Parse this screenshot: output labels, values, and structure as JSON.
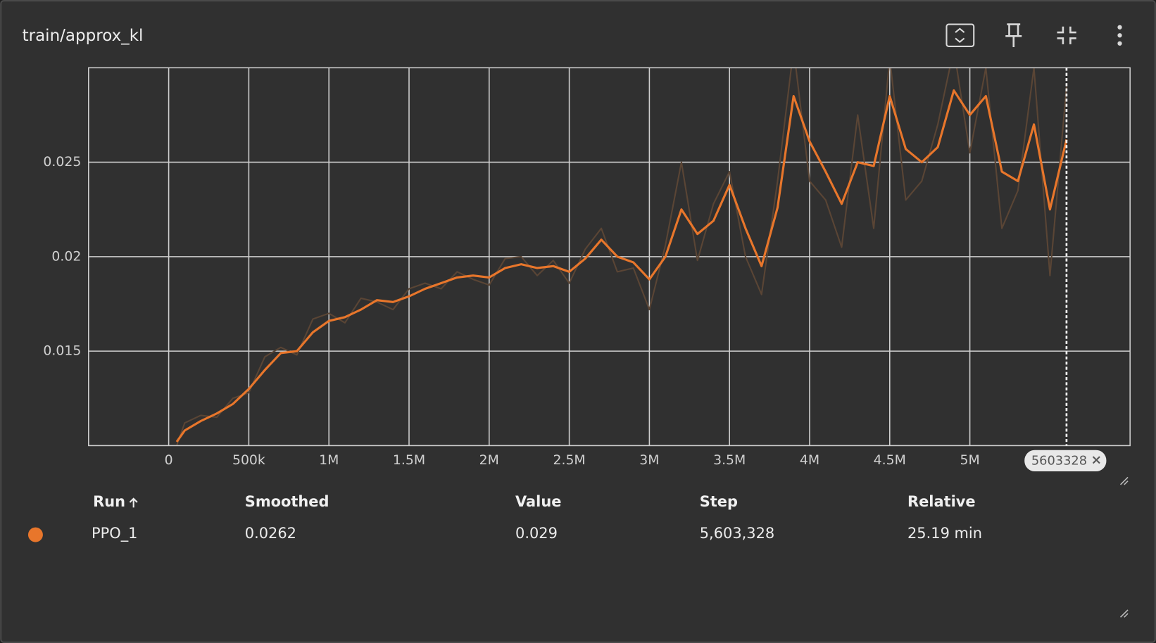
{
  "chart_data": {
    "type": "line",
    "title": "train/approx_kl",
    "x": [
      50000,
      100000,
      200000,
      300000,
      400000,
      500000,
      600000,
      700000,
      800000,
      900000,
      1000000,
      1100000,
      1200000,
      1300000,
      1400000,
      1500000,
      1600000,
      1700000,
      1800000,
      1900000,
      2000000,
      2100000,
      2200000,
      2300000,
      2400000,
      2500000,
      2600000,
      2700000,
      2800000,
      2900000,
      3000000,
      3100000,
      3200000,
      3300000,
      3400000,
      3500000,
      3600000,
      3700000,
      3800000,
      3900000,
      4000000,
      4100000,
      4200000,
      4300000,
      4400000,
      4500000,
      4600000,
      4700000,
      4800000,
      4900000,
      5000000,
      5100000,
      5200000,
      5300000,
      5400000,
      5500000,
      5603328
    ],
    "series": [
      {
        "color": "#5a4535",
        "values": [
          0.01,
          0.0112,
          0.0116,
          0.0115,
          0.0125,
          0.0128,
          0.0147,
          0.0152,
          0.0148,
          0.0167,
          0.017,
          0.0165,
          0.0178,
          0.0176,
          0.0172,
          0.0183,
          0.0186,
          0.0183,
          0.0192,
          0.0188,
          0.0185,
          0.0199,
          0.02,
          0.019,
          0.0198,
          0.0186,
          0.0204,
          0.0215,
          0.0192,
          0.0194,
          0.0172,
          0.0206,
          0.025,
          0.0198,
          0.0228,
          0.0245,
          0.02,
          0.018,
          0.024,
          0.031,
          0.024,
          0.023,
          0.0205,
          0.0275,
          0.0215,
          0.0305,
          0.023,
          0.024,
          0.027,
          0.031,
          0.0255,
          0.03,
          0.0215,
          0.0235,
          0.03,
          0.019,
          0.029
        ]
      },
      {
        "color": "#e8762b",
        "values": [
          0.0102,
          0.0108,
          0.0113,
          0.0117,
          0.0122,
          0.013,
          0.014,
          0.0149,
          0.015,
          0.016,
          0.0166,
          0.0168,
          0.0172,
          0.0177,
          0.0176,
          0.0179,
          0.0183,
          0.0186,
          0.0189,
          0.019,
          0.0189,
          0.0194,
          0.0196,
          0.0194,
          0.0195,
          0.0192,
          0.0199,
          0.0209,
          0.02,
          0.0197,
          0.0188,
          0.02,
          0.0225,
          0.0212,
          0.0219,
          0.0238,
          0.0215,
          0.0195,
          0.0226,
          0.0285,
          0.0261,
          0.0245,
          0.0228,
          0.025,
          0.0248,
          0.0285,
          0.0257,
          0.025,
          0.0258,
          0.0288,
          0.0275,
          0.0285,
          0.0245,
          0.024,
          0.027,
          0.0225,
          0.0262
        ]
      }
    ],
    "xlim": [
      -500000,
      6000000
    ],
    "xticks": [
      0,
      {
        "value": 500000,
        "label": "500k"
      },
      {
        "value": 1000000,
        "label": "1M"
      },
      {
        "value": 1500000,
        "label": "1.5M"
      },
      {
        "value": 2000000,
        "label": "2M"
      },
      {
        "value": 2500000,
        "label": "2.5M"
      },
      {
        "value": 3000000,
        "label": "3M"
      },
      {
        "value": 3500000,
        "label": "3.5M"
      },
      {
        "value": 4000000,
        "label": "4M"
      },
      {
        "value": 4500000,
        "label": "4.5M"
      },
      {
        "value": 5000000,
        "label": "5M"
      }
    ],
    "ylim": [
      0.01,
      0.03
    ],
    "yticks": [
      0.015,
      0.02,
      0.025
    ],
    "grid": true,
    "cursor_step": 5603328
  },
  "table": {
    "headers": [
      "Run",
      "Smoothed",
      "Value",
      "Step",
      "Relative"
    ],
    "rows": [
      [
        "PPO_1",
        "0.0262",
        "0.029",
        "5,603,328",
        "25.19 min"
      ]
    ]
  }
}
